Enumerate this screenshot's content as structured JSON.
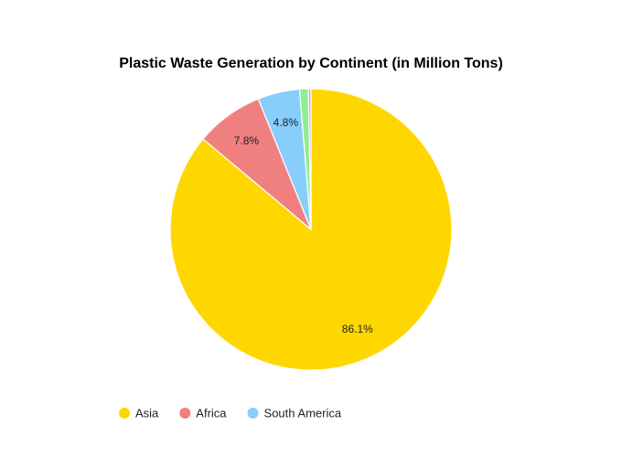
{
  "chart_data": {
    "type": "pie",
    "title": "Plastic Waste Generation by Continent (in Million Tons)",
    "slices": [
      {
        "name": "Asia",
        "percent": 86.1,
        "label": "86.1%",
        "color": "#FFD700",
        "show_label": true,
        "in_legend": true
      },
      {
        "name": "Africa",
        "percent": 7.8,
        "label": "7.8%",
        "color": "#F08080",
        "show_label": true,
        "in_legend": true
      },
      {
        "name": "South America",
        "percent": 4.8,
        "label": "4.8%",
        "color": "#87CEFA",
        "show_label": true,
        "in_legend": true
      },
      {
        "name": "",
        "percent": 1.0,
        "label": "",
        "color": "#90EE90",
        "show_label": false,
        "in_legend": false
      },
      {
        "name": "",
        "percent": 0.3,
        "label": "",
        "color": "#DDA0DD",
        "show_label": false,
        "in_legend": false
      }
    ],
    "legend_position": "bottom-left"
  }
}
